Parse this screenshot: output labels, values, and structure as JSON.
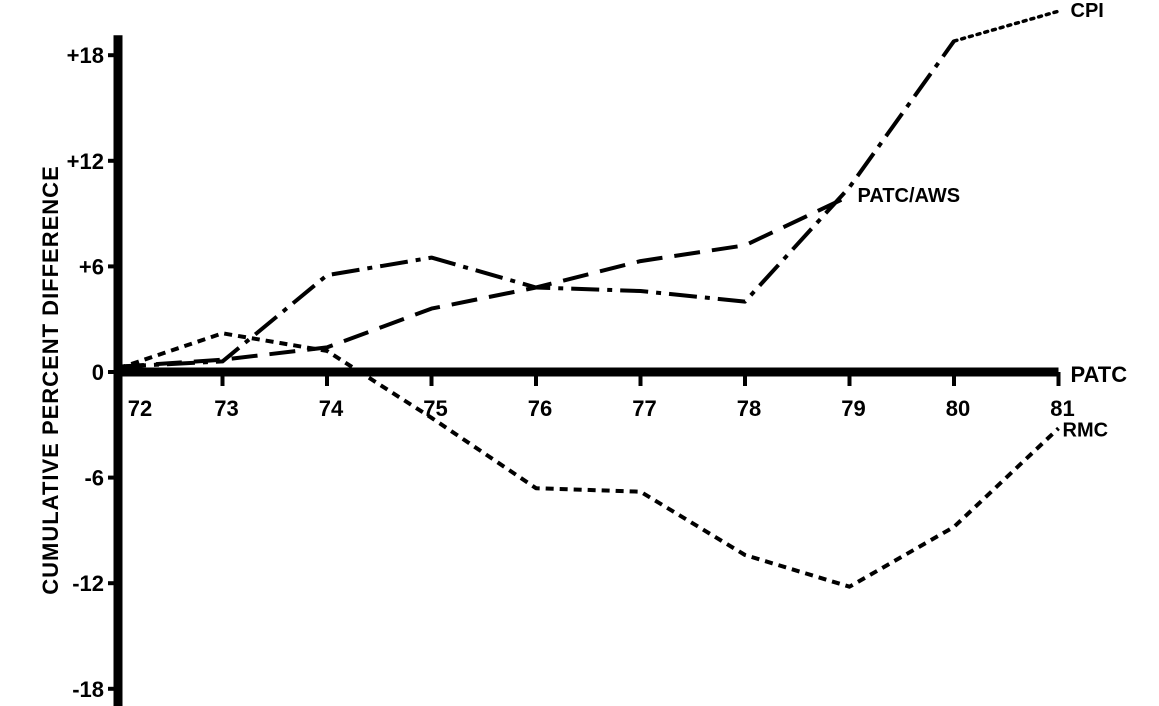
{
  "chart_data": {
    "type": "line",
    "title": "",
    "xlabel": "",
    "ylabel": "CUMULATIVE PERCENT DIFFERENCE",
    "x": [
      "72",
      "73",
      "74",
      "75",
      "76",
      "77",
      "78",
      "79",
      "80",
      "81"
    ],
    "y_ticks": [
      "+18",
      "+12",
      "+6",
      "0",
      "-6",
      "-12",
      "-18"
    ],
    "y_tick_values": [
      18,
      12,
      6,
      0,
      -6,
      -12,
      -18
    ],
    "ylim": [
      -18,
      18
    ],
    "baseline_label": "PATC",
    "grid": false,
    "series": [
      {
        "name": "CPI",
        "style": "dash-dot",
        "points": [
          [
            72,
            0.3
          ],
          [
            73,
            0.6
          ],
          [
            74,
            5.5
          ],
          [
            75,
            6.5
          ],
          [
            76,
            4.8
          ],
          [
            77,
            4.6
          ],
          [
            78,
            4.0
          ],
          [
            79,
            10.5
          ],
          [
            80,
            18.8
          ]
        ],
        "label_anchor": [
          80,
          18.8
        ],
        "extension_style": "dotted",
        "extension_points": [
          [
            80,
            18.8
          ],
          [
            81,
            20.5
          ]
        ]
      },
      {
        "name": "PATC/AWS",
        "style": "long-dash",
        "points": [
          [
            72,
            0.3
          ],
          [
            73,
            0.7
          ],
          [
            74,
            1.4
          ],
          [
            75,
            3.6
          ],
          [
            76,
            4.8
          ],
          [
            77,
            6.3
          ],
          [
            78,
            7.2
          ],
          [
            79,
            10.0
          ]
        ]
      },
      {
        "name": "RMC",
        "style": "short-dash",
        "points": [
          [
            72,
            0.2
          ],
          [
            73,
            2.2
          ],
          [
            74,
            1.2
          ],
          [
            75,
            -2.6
          ],
          [
            76,
            -6.6
          ],
          [
            77,
            -6.8
          ],
          [
            78,
            -10.4
          ],
          [
            79,
            -12.2
          ],
          [
            80,
            -8.8
          ],
          [
            81,
            -3.2
          ]
        ]
      }
    ]
  }
}
